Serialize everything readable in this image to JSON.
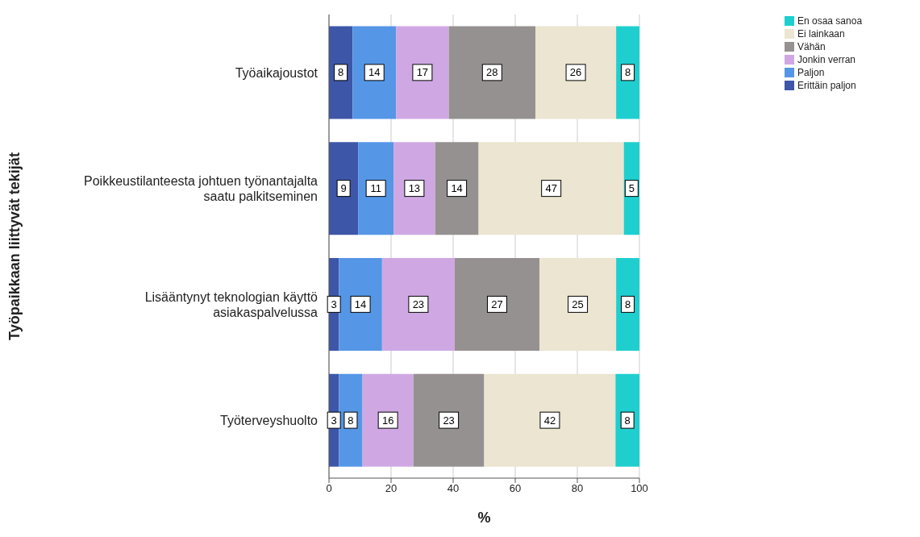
{
  "chart_data": {
    "type": "bar",
    "orientation": "horizontal",
    "stacked": true,
    "xlabel": "%",
    "ylabel": "Työpaikkaan liittyvät tekijät",
    "categories": [
      "Työaikajoustot",
      "Poikkeustilanteesta johtuen työnantajalta saatu palkitseminen",
      "Lisääntynyt teknologian käyttö asiakaspalvelussa",
      "Työterveyshuolto"
    ],
    "series": [
      {
        "name": "Erittäin paljon",
        "color": "#3d56a8",
        "values": [
          7.6,
          9.4,
          3.2,
          3.2
        ],
        "value_labels": [
          "8",
          "9",
          "3",
          "3"
        ]
      },
      {
        "name": "Paljon",
        "color": "#5596e6",
        "values": [
          14,
          11.4,
          13.9,
          7.6
        ],
        "value_labels": [
          "14",
          "11",
          "14",
          "8"
        ]
      },
      {
        "name": "Jonkin verran",
        "color": "#cfa8e3",
        "values": [
          17,
          13.4,
          23.4,
          16.4
        ],
        "value_labels": [
          "17",
          "13",
          "23",
          "16"
        ]
      },
      {
        "name": "Vähän",
        "color": "#959190",
        "values": [
          27.9,
          14,
          27.3,
          22.8
        ],
        "value_labels": [
          "28",
          "14",
          "27",
          "23"
        ]
      },
      {
        "name": "Ei lainkaan",
        "color": "#ebe5d1",
        "values": [
          26,
          46.8,
          24.7,
          42.3
        ],
        "value_labels": [
          "26",
          "47",
          "25",
          "42"
        ]
      },
      {
        "name": "En osaa sanoa",
        "color": "#1fcfcf",
        "values": [
          7.5,
          5,
          7.5,
          7.7
        ],
        "value_labels": [
          "8",
          "5",
          "8",
          "8"
        ]
      }
    ],
    "xlim": [
      0,
      100
    ],
    "xticks": [
      0,
      20,
      40,
      60,
      80,
      100
    ],
    "grid": "x",
    "legend": "top right"
  }
}
